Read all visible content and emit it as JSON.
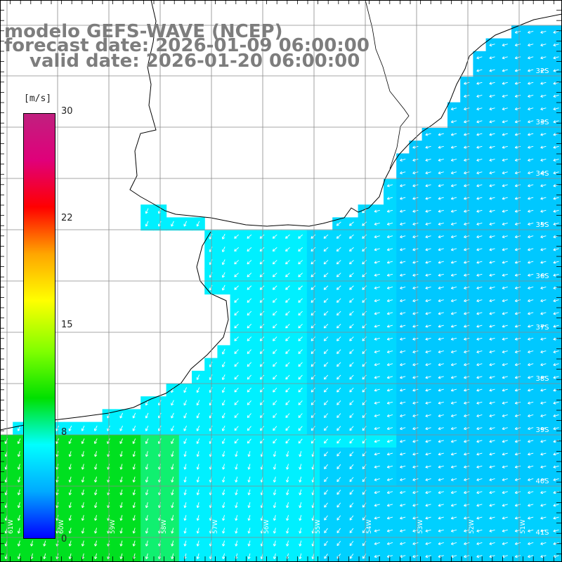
{
  "header": {
    "model": "modelo GEFS-WAVE (NCEP)",
    "forecast": "forecast date: 2026-01-09 06:00:00",
    "valid": "valid date: 2026-01-20 06:00:00"
  },
  "colorbar": {
    "unit": "[m/s]",
    "ticks": [
      "30",
      "22",
      "15",
      "8",
      "0"
    ],
    "tick_values": [
      30,
      22,
      15,
      8,
      0
    ],
    "colors": [
      "#0000ff",
      "#00aaff",
      "#00ffff",
      "#00e000",
      "#80ff00",
      "#ffff00",
      "#ffa500",
      "#ff0000",
      "#e0007a",
      "#c0207f"
    ]
  },
  "map": {
    "lat_labels": [
      "32S",
      "33S",
      "34S",
      "35S",
      "36S",
      "37S",
      "38S",
      "39S",
      "40S",
      "41S"
    ],
    "lon_labels": [
      "61W",
      "60W",
      "59W",
      "58W",
      "57W",
      "56W",
      "55W",
      "54W",
      "53W",
      "52W",
      "51W"
    ],
    "land_color": "#ffffff",
    "grid_color": "#8a8a8a",
    "arrow_color": "#ffffff"
  }
}
